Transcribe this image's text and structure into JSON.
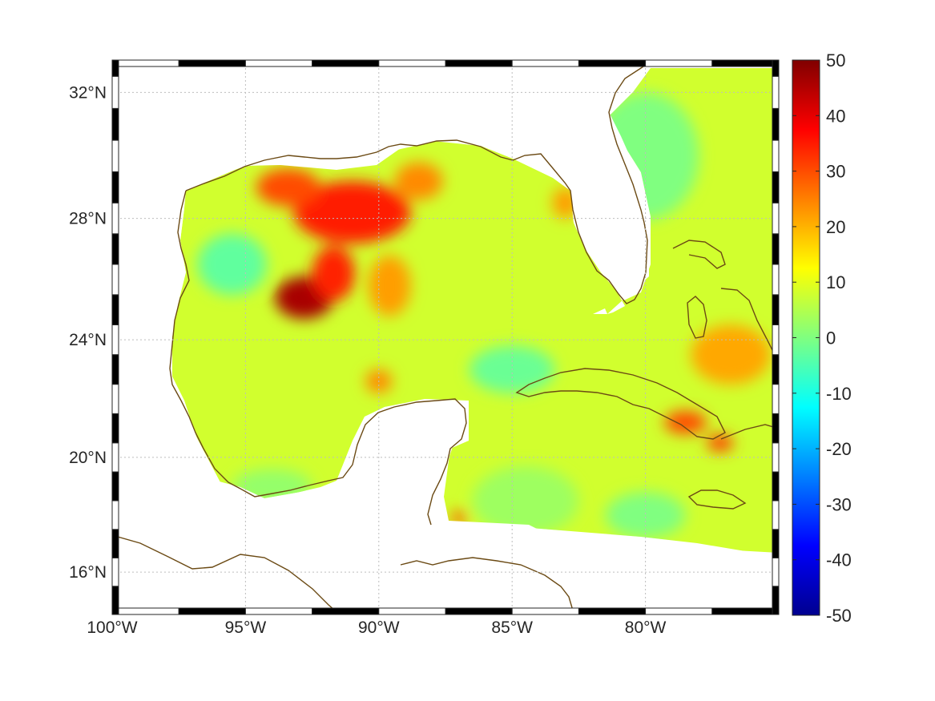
{
  "chart_data": {
    "type": "heatmap",
    "title": "",
    "projection": "mercator",
    "lon_range": [
      -100,
      -75
    ],
    "lat_range": [
      14.5,
      33
    ],
    "x_ticks": [
      {
        "value": -100,
        "label": "100°W"
      },
      {
        "value": -95,
        "label": "95°W"
      },
      {
        "value": -90,
        "label": "90°W"
      },
      {
        "value": -85,
        "label": "85°W"
      },
      {
        "value": -80,
        "label": "80°W"
      }
    ],
    "y_ticks": [
      {
        "value": 16,
        "label": "16°N"
      },
      {
        "value": 20,
        "label": "20°N"
      },
      {
        "value": 24,
        "label": "24°N"
      },
      {
        "value": 28,
        "label": "28°N"
      },
      {
        "value": 32,
        "label": "32°N"
      }
    ],
    "grid": true,
    "colormap": "jet",
    "colorbar": {
      "range": [
        -50,
        50
      ],
      "ticks": [
        {
          "value": 50,
          "label": "50"
        },
        {
          "value": 40,
          "label": "40"
        },
        {
          "value": 30,
          "label": "30"
        },
        {
          "value": 20,
          "label": "20"
        },
        {
          "value": 10,
          "label": "10"
        },
        {
          "value": 0,
          "label": "0"
        },
        {
          "value": -10,
          "label": "-10"
        },
        {
          "value": -20,
          "label": "-20"
        },
        {
          "value": -30,
          "label": "-30"
        },
        {
          "value": -40,
          "label": "-40"
        },
        {
          "value": -50,
          "label": "-50"
        }
      ],
      "location": "right"
    },
    "background_level": 8,
    "anomalies": [
      {
        "lon": -91.0,
        "lat": 28.2,
        "value": 35,
        "rlon": 2.2,
        "rlat": 1.0
      },
      {
        "lon": -92.8,
        "lat": 25.4,
        "value": 46,
        "rlon": 1.1,
        "rlat": 0.7
      },
      {
        "lon": -91.7,
        "lat": 26.2,
        "value": 34,
        "rlon": 0.8,
        "rlat": 0.9
      },
      {
        "lon": -93.4,
        "lat": 29.0,
        "value": 30,
        "rlon": 1.2,
        "rlat": 0.6
      },
      {
        "lon": -88.5,
        "lat": 29.2,
        "value": 24,
        "rlon": 0.9,
        "rlat": 0.6
      },
      {
        "lon": -89.6,
        "lat": 25.8,
        "value": 22,
        "rlon": 0.8,
        "rlat": 1.0
      },
      {
        "lon": -90.0,
        "lat": 22.6,
        "value": 24,
        "rlon": 0.5,
        "rlat": 0.4
      },
      {
        "lon": -83.0,
        "lat": 28.5,
        "value": 22,
        "rlon": 0.5,
        "rlat": 0.5
      },
      {
        "lon": -78.5,
        "lat": 21.2,
        "value": 30,
        "rlon": 0.8,
        "rlat": 0.4
      },
      {
        "lon": -77.2,
        "lat": 20.5,
        "value": 31,
        "rlon": 0.5,
        "rlat": 0.3
      },
      {
        "lon": -76.8,
        "lat": 23.5,
        "value": 21,
        "rlon": 1.5,
        "rlat": 1.0
      },
      {
        "lon": -87.0,
        "lat": 17.9,
        "value": 28,
        "rlon": 0.3,
        "rlat": 0.25
      },
      {
        "lon": -95.5,
        "lat": 26.5,
        "value": -3,
        "rlon": 1.3,
        "rlat": 1.0
      },
      {
        "lon": -85.0,
        "lat": 23.0,
        "value": -2,
        "rlon": 1.6,
        "rlat": 0.8
      },
      {
        "lon": -80.0,
        "lat": 30.0,
        "value": 0,
        "rlon": 2.0,
        "rlat": 2.0
      },
      {
        "lon": -80.0,
        "lat": 18.0,
        "value": 0,
        "rlon": 1.5,
        "rlat": 0.8
      },
      {
        "lon": -94.0,
        "lat": 19.0,
        "value": 2,
        "rlon": 1.5,
        "rlat": 0.6
      },
      {
        "lon": -84.5,
        "lat": 18.5,
        "value": 3,
        "rlon": 2.0,
        "rlat": 1.2
      }
    ]
  }
}
